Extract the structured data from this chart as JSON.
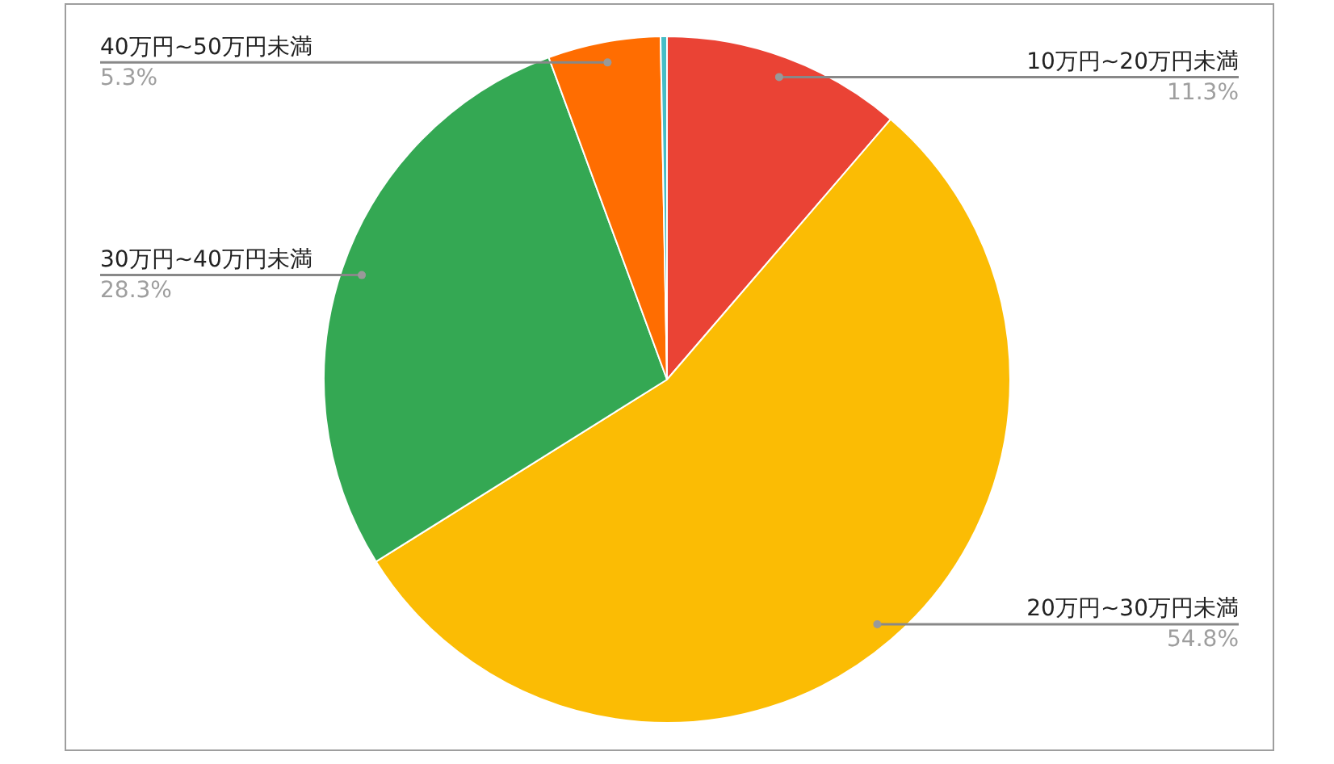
{
  "chart_data": {
    "type": "pie",
    "categories": [
      "10万円~20万円未満",
      "20万円~30万円未満",
      "30万円~40万円未満",
      "40万円~50万円未満",
      null
    ],
    "values": [
      11.3,
      54.8,
      28.3,
      5.3,
      0.3
    ],
    "colors": [
      "#ea4335",
      "#fbbc04",
      "#34a853",
      "#ff6d01",
      "#46bdc6"
    ],
    "value_labels": [
      "11.3%",
      "54.8%",
      "28.3%",
      "5.3%",
      null
    ],
    "legend": false
  }
}
